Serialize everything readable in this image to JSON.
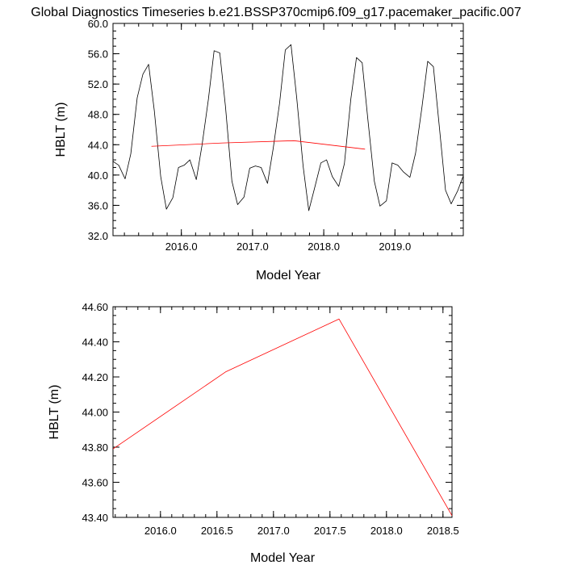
{
  "title": "Global Diagnostics Timeseries b.e21.BSSP370cmip6.f09_g17.pacemaker_pacific.007",
  "chart_data": [
    {
      "type": "line",
      "xlabel": "Model Year",
      "ylabel": "HBLT (m)",
      "xlim": [
        2015.04,
        2019.96
      ],
      "ylim": [
        32.0,
        60.0
      ],
      "xticks": [
        2016.0,
        2017.0,
        2018.0,
        2019.0
      ],
      "xtick_labels": [
        "2016.0",
        "2017.0",
        "2018.0",
        "2019.0"
      ],
      "yticks": [
        32.0,
        36.0,
        40.0,
        44.0,
        48.0,
        52.0,
        56.0,
        60.0
      ],
      "ytick_labels": [
        "32.0",
        "36.0",
        "40.0",
        "44.0",
        "48.0",
        "52.0",
        "56.0",
        "60.0"
      ],
      "grid": false,
      "series": [
        {
          "color": "#000000",
          "x": [
            2015.04,
            2015.12,
            2015.21,
            2015.29,
            2015.38,
            2015.46,
            2015.54,
            2015.62,
            2015.71,
            2015.79,
            2015.88,
            2015.96,
            2016.04,
            2016.12,
            2016.21,
            2016.29,
            2016.38,
            2016.46,
            2016.54,
            2016.62,
            2016.71,
            2016.79,
            2016.88,
            2016.96,
            2017.04,
            2017.12,
            2017.21,
            2017.29,
            2017.38,
            2017.46,
            2017.54,
            2017.62,
            2017.71,
            2017.79,
            2017.88,
            2017.96,
            2018.04,
            2018.12,
            2018.21,
            2018.29,
            2018.38,
            2018.46,
            2018.54,
            2018.62,
            2018.71,
            2018.79,
            2018.88,
            2018.96,
            2019.04,
            2019.12,
            2019.21,
            2019.29,
            2019.38,
            2019.46,
            2019.54,
            2019.62,
            2019.71,
            2019.79,
            2019.88,
            2019.96
          ],
          "y": [
            41.8,
            41.3,
            39.5,
            42.8,
            50.2,
            53.3,
            54.6,
            48.5,
            39.8,
            35.5,
            37.0,
            41.0,
            41.3,
            42.0,
            39.4,
            43.9,
            50.0,
            56.4,
            56.1,
            49.0,
            39.2,
            36.1,
            37.1,
            40.9,
            41.2,
            41.0,
            38.9,
            43.5,
            49.5,
            56.5,
            57.2,
            50.2,
            41.2,
            35.3,
            38.6,
            41.6,
            42.0,
            39.8,
            38.5,
            41.5,
            50.0,
            55.5,
            54.8,
            47.3,
            39.2,
            35.9,
            36.6,
            41.6,
            41.3,
            40.4,
            39.7,
            42.9,
            49.0,
            55.0,
            54.3,
            46.7,
            38.0,
            36.2,
            37.9,
            39.9
          ]
        },
        {
          "color": "#ff0000",
          "x": [
            2015.58,
            2016.58,
            2017.58,
            2018.58
          ],
          "y": [
            43.79,
            44.23,
            44.53,
            43.41
          ]
        }
      ]
    },
    {
      "type": "line",
      "xlabel": "Model Year",
      "ylabel": "HBLT (m)",
      "xlim": [
        2015.58,
        2018.58
      ],
      "ylim": [
        43.4,
        44.6
      ],
      "xticks": [
        2016.0,
        2016.5,
        2017.0,
        2017.5,
        2018.0,
        2018.5
      ],
      "xtick_labels": [
        "2016.0",
        "2016.5",
        "2017.0",
        "2017.5",
        "2018.0",
        "2018.5"
      ],
      "yticks": [
        43.4,
        43.6,
        43.8,
        44.0,
        44.2,
        44.4,
        44.6
      ],
      "ytick_labels": [
        "43.40",
        "43.60",
        "43.80",
        "44.00",
        "44.20",
        "44.40",
        "44.60"
      ],
      "grid": false,
      "series": [
        {
          "color": "#ff0000",
          "x": [
            2015.58,
            2016.58,
            2017.58,
            2018.58
          ],
          "y": [
            43.79,
            44.23,
            44.53,
            43.41
          ]
        }
      ]
    }
  ]
}
